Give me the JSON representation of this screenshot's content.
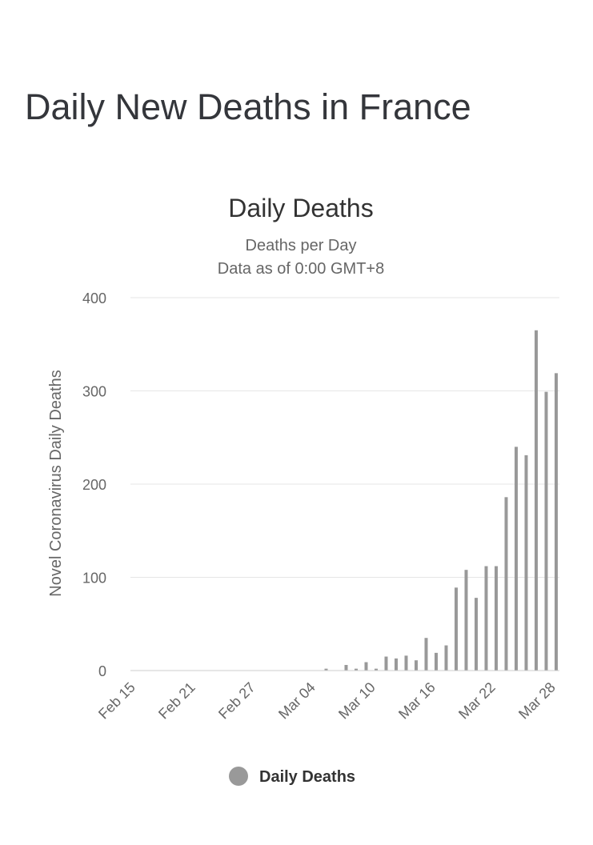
{
  "page": {
    "title": "Daily New Deaths in France"
  },
  "chart_data": {
    "type": "bar",
    "title": "Daily Deaths",
    "subtitle_lines": [
      "Deaths per Day",
      "Data as of 0:00 GMT+8"
    ],
    "ylabel": "Novel Coronavirus Daily Deaths",
    "xlabel": "",
    "ylim": [
      0,
      400
    ],
    "yticks": [
      0,
      100,
      200,
      300,
      400
    ],
    "grid": true,
    "legend_placement": "bottom-center",
    "bar_color": "#999999",
    "categories": [
      "Feb 15",
      "Feb 16",
      "Feb 17",
      "Feb 18",
      "Feb 19",
      "Feb 20",
      "Feb 21",
      "Feb 22",
      "Feb 23",
      "Feb 24",
      "Feb 25",
      "Feb 26",
      "Feb 27",
      "Feb 28",
      "Feb 29",
      "Mar 01",
      "Mar 02",
      "Mar 03",
      "Mar 04",
      "Mar 05",
      "Mar 06",
      "Mar 07",
      "Mar 08",
      "Mar 09",
      "Mar 10",
      "Mar 11",
      "Mar 12",
      "Mar 13",
      "Mar 14",
      "Mar 15",
      "Mar 16",
      "Mar 17",
      "Mar 18",
      "Mar 19",
      "Mar 20",
      "Mar 21",
      "Mar 22",
      "Mar 23",
      "Mar 24",
      "Mar 25",
      "Mar 26",
      "Mar 27",
      "Mar 28"
    ],
    "x_tick_labels": [
      "Feb 15",
      "Feb 21",
      "Feb 27",
      "Mar 04",
      "Mar 10",
      "Mar 16",
      "Mar 22",
      "Mar 28"
    ],
    "series": [
      {
        "name": "Daily Deaths",
        "values": [
          0,
          0,
          0,
          0,
          0,
          0,
          0,
          0,
          0,
          0,
          0,
          0,
          0,
          0,
          0,
          0,
          0,
          0,
          0,
          2,
          0,
          6,
          2,
          9,
          2,
          15,
          13,
          16,
          11,
          35,
          19,
          27,
          89,
          108,
          78,
          112,
          112,
          186,
          240,
          231,
          365,
          299,
          319
        ]
      }
    ]
  }
}
